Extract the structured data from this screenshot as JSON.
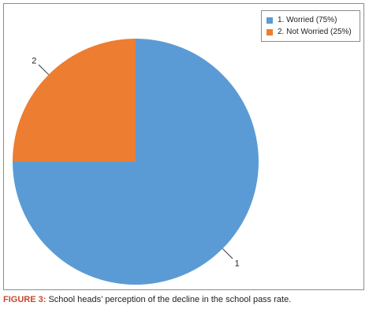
{
  "chart_data": {
    "type": "pie",
    "categories": [
      "1. Worried (75%)",
      "2. Not Worried (25%)"
    ],
    "values": [
      75,
      25
    ],
    "slice_labels": [
      "1",
      "2"
    ],
    "colors": [
      "#5b9bd5",
      "#ed7d31"
    ],
    "legend_position": "top-right",
    "title": ""
  },
  "caption": {
    "label": "FIGURE 3:",
    "text": " School heads’ perception of the decline in the school pass rate."
  }
}
